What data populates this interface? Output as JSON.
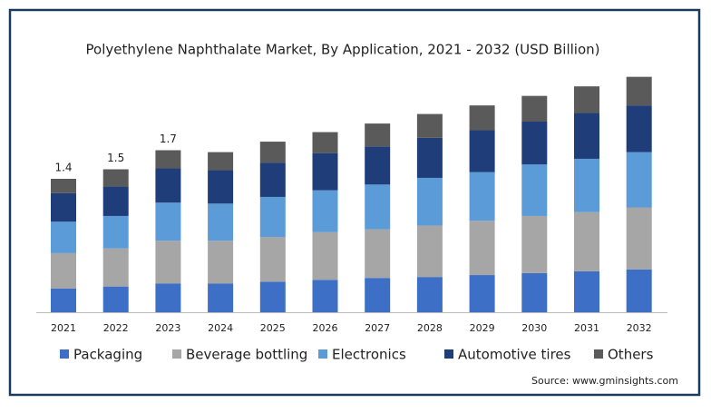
{
  "chart_data": {
    "type": "stacked_bar",
    "title": "Polyethylene Naphthalate Market, By Application, 2021 - 2032 (USD Billion)",
    "categories": [
      "2021",
      "2022",
      "2023",
      "2024",
      "2025",
      "2026",
      "2027",
      "2028",
      "2029",
      "2030",
      "2031",
      "2032"
    ],
    "series": [
      {
        "name": "Packaging",
        "color": "#3d6fc6",
        "values": [
          0.25,
          0.27,
          0.3,
          0.3,
          0.32,
          0.34,
          0.36,
          0.37,
          0.39,
          0.41,
          0.43,
          0.45
        ]
      },
      {
        "name": "Beverage bottling",
        "color": "#a6a6a6",
        "values": [
          0.37,
          0.4,
          0.45,
          0.45,
          0.47,
          0.5,
          0.51,
          0.54,
          0.57,
          0.6,
          0.62,
          0.65
        ]
      },
      {
        "name": "Electronics",
        "color": "#5b9bd8",
        "values": [
          0.33,
          0.34,
          0.4,
          0.39,
          0.42,
          0.44,
          0.47,
          0.5,
          0.51,
          0.54,
          0.56,
          0.58
        ]
      },
      {
        "name": "Automotive tires",
        "color": "#1f3d78",
        "values": [
          0.3,
          0.31,
          0.36,
          0.35,
          0.36,
          0.39,
          0.4,
          0.42,
          0.44,
          0.45,
          0.48,
          0.49
        ]
      },
      {
        "name": "Others",
        "color": "#5a5a5a",
        "values": [
          0.15,
          0.18,
          0.19,
          0.19,
          0.22,
          0.22,
          0.24,
          0.25,
          0.26,
          0.27,
          0.28,
          0.3
        ]
      }
    ],
    "total_labels": [
      1.4,
      1.5,
      1.7
    ],
    "source": "Source: www.gminsights.com"
  }
}
